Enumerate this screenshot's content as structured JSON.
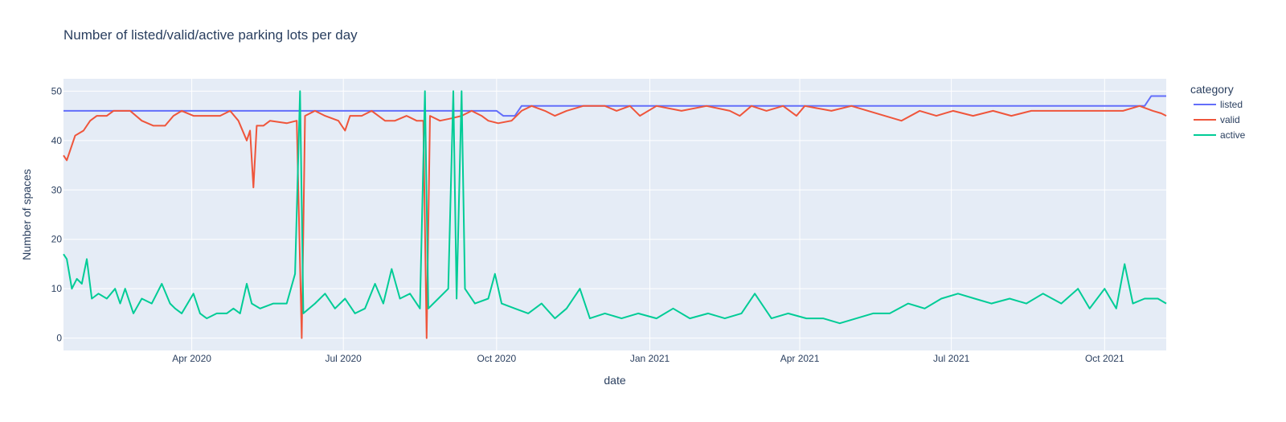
{
  "chart_data": {
    "type": "line",
    "title": "Number of listed/valid/active parking lots per day",
    "xlabel": "date",
    "ylabel": "Number of spaces",
    "x_range": [
      "2020-01-15",
      "2021-11-07"
    ],
    "ylim": [
      -2.5,
      52.5
    ],
    "grid": true,
    "x_ticks": [
      {
        "date": "2020-04-01",
        "label": "Apr 2020"
      },
      {
        "date": "2020-07-01",
        "label": "Jul 2020"
      },
      {
        "date": "2020-10-01",
        "label": "Oct 2020"
      },
      {
        "date": "2021-01-01",
        "label": "Jan 2021"
      },
      {
        "date": "2021-04-01",
        "label": "Apr 2021"
      },
      {
        "date": "2021-07-01",
        "label": "Jul 2021"
      },
      {
        "date": "2021-10-01",
        "label": "Oct 2021"
      }
    ],
    "y_ticks": [
      0,
      10,
      20,
      30,
      40,
      50
    ],
    "legend": {
      "title": "category",
      "placement": "right"
    },
    "colors": {
      "plot_bg": "#e5ecf6",
      "grid": "#ffffff",
      "text": "#2a3f5f"
    },
    "series": [
      {
        "name": "listed",
        "color": "#636efa",
        "points": [
          [
            "2020-01-15",
            46
          ],
          [
            "2020-10-01",
            46
          ],
          [
            "2020-10-05",
            45
          ],
          [
            "2020-10-12",
            45
          ],
          [
            "2020-10-16",
            47
          ],
          [
            "2021-10-25",
            47
          ],
          [
            "2021-10-29",
            49
          ],
          [
            "2021-11-07",
            49
          ]
        ]
      },
      {
        "name": "valid",
        "color": "#ef553b",
        "points": [
          [
            "2020-01-15",
            37
          ],
          [
            "2020-01-17",
            36
          ],
          [
            "2020-01-22",
            41
          ],
          [
            "2020-01-27",
            42
          ],
          [
            "2020-01-31",
            44
          ],
          [
            "2020-02-04",
            45
          ],
          [
            "2020-02-10",
            45
          ],
          [
            "2020-02-14",
            46
          ],
          [
            "2020-02-24",
            46
          ],
          [
            "2020-03-02",
            44
          ],
          [
            "2020-03-09",
            43
          ],
          [
            "2020-03-16",
            43
          ],
          [
            "2020-03-21",
            45
          ],
          [
            "2020-03-26",
            46
          ],
          [
            "2020-04-02",
            45
          ],
          [
            "2020-04-12",
            45
          ],
          [
            "2020-04-18",
            45
          ],
          [
            "2020-04-24",
            46
          ],
          [
            "2020-04-29",
            44
          ],
          [
            "2020-05-04",
            40
          ],
          [
            "2020-05-06",
            42
          ],
          [
            "2020-05-08",
            30.5
          ],
          [
            "2020-05-10",
            43
          ],
          [
            "2020-05-14",
            43
          ],
          [
            "2020-05-18",
            44
          ],
          [
            "2020-05-28",
            43.5
          ],
          [
            "2020-06-03",
            44
          ],
          [
            "2020-06-06",
            0
          ],
          [
            "2020-06-08",
            45
          ],
          [
            "2020-06-14",
            46
          ],
          [
            "2020-06-20",
            45
          ],
          [
            "2020-06-28",
            44
          ],
          [
            "2020-07-02",
            42
          ],
          [
            "2020-07-05",
            45
          ],
          [
            "2020-07-12",
            45
          ],
          [
            "2020-07-18",
            46
          ],
          [
            "2020-07-26",
            44
          ],
          [
            "2020-08-01",
            44
          ],
          [
            "2020-08-08",
            45
          ],
          [
            "2020-08-14",
            44
          ],
          [
            "2020-08-18",
            44
          ],
          [
            "2020-08-20",
            0
          ],
          [
            "2020-08-22",
            45
          ],
          [
            "2020-08-28",
            44
          ],
          [
            "2020-09-04",
            44.5
          ],
          [
            "2020-09-10",
            45
          ],
          [
            "2020-09-16",
            46
          ],
          [
            "2020-09-22",
            45
          ],
          [
            "2020-09-26",
            44
          ],
          [
            "2020-10-02",
            43.5
          ],
          [
            "2020-10-10",
            44
          ],
          [
            "2020-10-16",
            46
          ],
          [
            "2020-10-22",
            47
          ],
          [
            "2020-10-30",
            46
          ],
          [
            "2020-11-05",
            45
          ],
          [
            "2020-11-12",
            46
          ],
          [
            "2020-11-22",
            47
          ],
          [
            "2020-12-05",
            47
          ],
          [
            "2020-12-12",
            46
          ],
          [
            "2020-12-20",
            47
          ],
          [
            "2020-12-26",
            45
          ],
          [
            "2021-01-05",
            47
          ],
          [
            "2021-01-20",
            46
          ],
          [
            "2021-02-04",
            47
          ],
          [
            "2021-02-18",
            46
          ],
          [
            "2021-02-24",
            45
          ],
          [
            "2021-03-03",
            47
          ],
          [
            "2021-03-12",
            46
          ],
          [
            "2021-03-22",
            47
          ],
          [
            "2021-03-30",
            45
          ],
          [
            "2021-04-04",
            47
          ],
          [
            "2021-04-20",
            46
          ],
          [
            "2021-05-02",
            47
          ],
          [
            "2021-05-12",
            46
          ],
          [
            "2021-05-22",
            45
          ],
          [
            "2021-06-01",
            44
          ],
          [
            "2021-06-12",
            46
          ],
          [
            "2021-06-22",
            45
          ],
          [
            "2021-07-02",
            46
          ],
          [
            "2021-07-14",
            45
          ],
          [
            "2021-07-26",
            46
          ],
          [
            "2021-08-06",
            45
          ],
          [
            "2021-08-18",
            46
          ],
          [
            "2021-08-30",
            46
          ],
          [
            "2021-09-10",
            46
          ],
          [
            "2021-09-22",
            46
          ],
          [
            "2021-10-02",
            46
          ],
          [
            "2021-10-12",
            46
          ],
          [
            "2021-10-22",
            47
          ],
          [
            "2021-10-30",
            46
          ],
          [
            "2021-11-04",
            45.5
          ],
          [
            "2021-11-07",
            45
          ]
        ]
      },
      {
        "name": "active",
        "color": "#00cc96",
        "points": [
          [
            "2020-01-15",
            17
          ],
          [
            "2020-01-17",
            16
          ],
          [
            "2020-01-20",
            10
          ],
          [
            "2020-01-23",
            12
          ],
          [
            "2020-01-26",
            11
          ],
          [
            "2020-01-29",
            16
          ],
          [
            "2020-02-01",
            8
          ],
          [
            "2020-02-05",
            9
          ],
          [
            "2020-02-10",
            8
          ],
          [
            "2020-02-15",
            10
          ],
          [
            "2020-02-18",
            7
          ],
          [
            "2020-02-21",
            10
          ],
          [
            "2020-02-26",
            5
          ],
          [
            "2020-03-02",
            8
          ],
          [
            "2020-03-08",
            7
          ],
          [
            "2020-03-14",
            11
          ],
          [
            "2020-03-19",
            7
          ],
          [
            "2020-03-22",
            6
          ],
          [
            "2020-03-26",
            5
          ],
          [
            "2020-04-02",
            9
          ],
          [
            "2020-04-06",
            5
          ],
          [
            "2020-04-10",
            4
          ],
          [
            "2020-04-16",
            5
          ],
          [
            "2020-04-22",
            5
          ],
          [
            "2020-04-26",
            6
          ],
          [
            "2020-04-30",
            5
          ],
          [
            "2020-05-04",
            11
          ],
          [
            "2020-05-07",
            7
          ],
          [
            "2020-05-12",
            6
          ],
          [
            "2020-05-20",
            7
          ],
          [
            "2020-05-28",
            7
          ],
          [
            "2020-06-02",
            13
          ],
          [
            "2020-06-05",
            50
          ],
          [
            "2020-06-07",
            5
          ],
          [
            "2020-06-14",
            7
          ],
          [
            "2020-06-20",
            9
          ],
          [
            "2020-06-26",
            6
          ],
          [
            "2020-07-02",
            8
          ],
          [
            "2020-07-08",
            5
          ],
          [
            "2020-07-14",
            6
          ],
          [
            "2020-07-20",
            11
          ],
          [
            "2020-07-25",
            7
          ],
          [
            "2020-07-30",
            14
          ],
          [
            "2020-08-04",
            8
          ],
          [
            "2020-08-10",
            9
          ],
          [
            "2020-08-16",
            6
          ],
          [
            "2020-08-19",
            50
          ],
          [
            "2020-08-21",
            6
          ],
          [
            "2020-08-27",
            8
          ],
          [
            "2020-09-02",
            10
          ],
          [
            "2020-09-05",
            50
          ],
          [
            "2020-09-07",
            8
          ],
          [
            "2020-09-10",
            50
          ],
          [
            "2020-09-12",
            10
          ],
          [
            "2020-09-18",
            7
          ],
          [
            "2020-09-26",
            8
          ],
          [
            "2020-09-30",
            13
          ],
          [
            "2020-10-04",
            7
          ],
          [
            "2020-10-12",
            6
          ],
          [
            "2020-10-20",
            5
          ],
          [
            "2020-10-28",
            7
          ],
          [
            "2020-11-05",
            4
          ],
          [
            "2020-11-12",
            6
          ],
          [
            "2020-11-20",
            10
          ],
          [
            "2020-11-26",
            4
          ],
          [
            "2020-12-05",
            5
          ],
          [
            "2020-12-15",
            4
          ],
          [
            "2020-12-25",
            5
          ],
          [
            "2021-01-05",
            4
          ],
          [
            "2021-01-15",
            6
          ],
          [
            "2021-01-25",
            4
          ],
          [
            "2021-02-05",
            5
          ],
          [
            "2021-02-15",
            4
          ],
          [
            "2021-02-25",
            5
          ],
          [
            "2021-03-05",
            9
          ],
          [
            "2021-03-15",
            4
          ],
          [
            "2021-03-25",
            5
          ],
          [
            "2021-04-05",
            4
          ],
          [
            "2021-04-15",
            4
          ],
          [
            "2021-04-25",
            3
          ],
          [
            "2021-05-05",
            4
          ],
          [
            "2021-05-15",
            5
          ],
          [
            "2021-05-25",
            5
          ],
          [
            "2021-06-05",
            7
          ],
          [
            "2021-06-15",
            6
          ],
          [
            "2021-06-25",
            8
          ],
          [
            "2021-07-05",
            9
          ],
          [
            "2021-07-15",
            8
          ],
          [
            "2021-07-25",
            7
          ],
          [
            "2021-08-05",
            8
          ],
          [
            "2021-08-15",
            7
          ],
          [
            "2021-08-25",
            9
          ],
          [
            "2021-09-05",
            7
          ],
          [
            "2021-09-15",
            10
          ],
          [
            "2021-09-22",
            6
          ],
          [
            "2021-10-01",
            10
          ],
          [
            "2021-10-08",
            6
          ],
          [
            "2021-10-13",
            15
          ],
          [
            "2021-10-18",
            7
          ],
          [
            "2021-10-25",
            8
          ],
          [
            "2021-11-02",
            8
          ],
          [
            "2021-11-07",
            7
          ]
        ]
      }
    ]
  }
}
